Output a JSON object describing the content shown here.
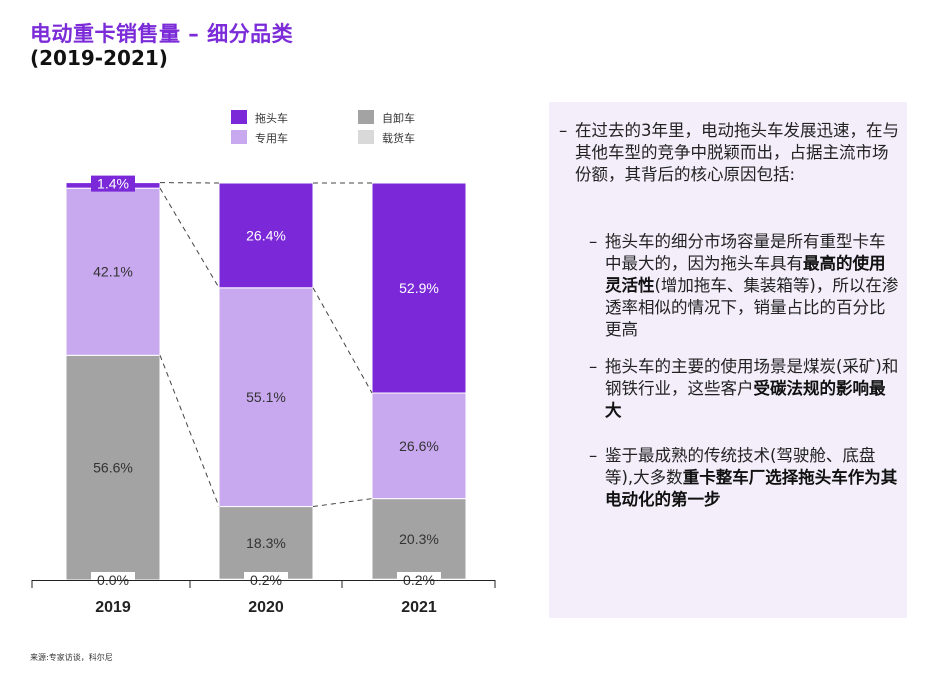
{
  "title": "电动重卡销售量 – 细分品类",
  "subtitle": "(2019-2021)",
  "colors": {
    "tractor": "#7a28d8",
    "special": "#c8a8ee",
    "dump": "#a3a3a3",
    "cargo": "#d9d9d9",
    "panel": "#f3eefa",
    "title": "#7b2cd8"
  },
  "chart_data": {
    "type": "bar",
    "stacked": true,
    "normalized": true,
    "categories": [
      "2019",
      "2020",
      "2021"
    ],
    "series": [
      {
        "name": "载货车",
        "key": "cargo",
        "values": [
          0.0,
          0.2,
          0.2
        ],
        "labels": [
          "0.0%",
          "0.2%",
          "0.2%"
        ]
      },
      {
        "name": "自卸车",
        "key": "dump",
        "values": [
          56.6,
          18.3,
          20.3
        ],
        "labels": [
          "56.6%",
          "18.3%",
          "20.3%"
        ]
      },
      {
        "name": "专用车",
        "key": "special",
        "values": [
          42.1,
          55.1,
          26.6
        ],
        "labels": [
          "42.1%",
          "55.1%",
          "26.6%"
        ]
      },
      {
        "name": "拖头车",
        "key": "tractor",
        "values": [
          1.4,
          26.4,
          52.9
        ],
        "labels": [
          "1.4%",
          "26.4%",
          "52.9%"
        ]
      }
    ],
    "legend": [
      {
        "name": "拖头车",
        "key": "tractor"
      },
      {
        "name": "自卸车",
        "key": "dump"
      },
      {
        "name": "专用车",
        "key": "special"
      },
      {
        "name": "载货车",
        "key": "cargo"
      }
    ],
    "ylim": [
      0,
      100
    ],
    "legend_position": "top"
  },
  "commentary": {
    "intro": "在过去的3年里，电动拖头车发展迅速，在与其他车型的竞争中脱颖而出，占据主流市场份额，其背后的核心原因包括:",
    "points": [
      {
        "pre": "拖头车的细分市场容量是所有重型卡车中最大的，因为拖头车具有",
        "bold": "最高的使用灵活性",
        "post": "(增加拖车、集装箱等)，所以在渗透率相似的情况下，销量占比的百分比更高"
      },
      {
        "pre": "拖头车的主要的使用场景是煤炭(采矿)和钢铁行业，这些客户",
        "bold": "受碳法规的影响最大",
        "post": ""
      },
      {
        "pre": "鉴于最成熟的传统技术(驾驶舱、底盘等),大多数",
        "bold": "重卡整车厂选择拖头车作为其电动化的第一步",
        "post": ""
      }
    ]
  },
  "source": "来源:专家访谈，科尔尼"
}
